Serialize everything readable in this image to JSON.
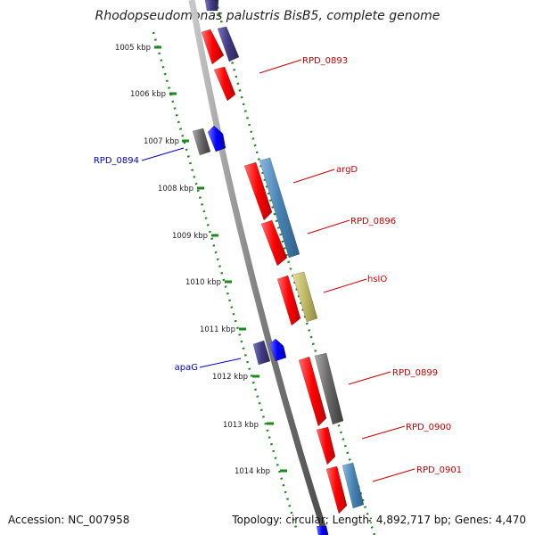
{
  "title": "Rhodopseudomonas palustris BisB5, complete genome",
  "footer": {
    "accession": "Accession: NC_007958",
    "topology": "Topology: circular; Length: 4,892,717 bp; Genes: 4,470"
  },
  "ticks": [
    "1005 kbp",
    "1006 kbp",
    "1007 kbp",
    "1008 kbp",
    "1009 kbp",
    "1010 kbp",
    "1011 kbp",
    "1012 kbp",
    "1013 kbp",
    "1014 kbp"
  ],
  "labels": {
    "rpd_0893": "RPD_0893",
    "rpd_0894": "RPD_0894",
    "argD": "argD",
    "rpd_0896": "RPD_0896",
    "hslO": "hslO",
    "apaG": "apaG",
    "rpd_0899": "RPD_0899",
    "rpd_0900": "RPD_0900",
    "rpd_0901": "RPD_0901"
  },
  "colors": {
    "cds_forward": "#ff0000",
    "cds_reverse": "#0000ff",
    "label_forward": "#cc0000",
    "label_reverse": "#0000cc",
    "ruler": "#1a8a1a",
    "backbone": "#808080",
    "steel_blue": "#4682b4",
    "slate": "#403a80",
    "khaki": "#c0b868",
    "gray": "#666666"
  }
}
